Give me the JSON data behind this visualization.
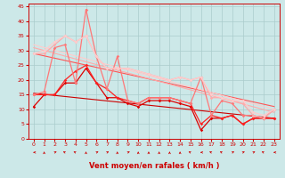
{
  "xlabel": "Vent moyen/en rafales ( km/h )",
  "xlim": [
    -0.5,
    23.5
  ],
  "ylim": [
    0,
    46
  ],
  "yticks": [
    0,
    5,
    10,
    15,
    20,
    25,
    30,
    35,
    40,
    45
  ],
  "xticks": [
    0,
    1,
    2,
    3,
    4,
    5,
    6,
    7,
    8,
    9,
    10,
    11,
    12,
    13,
    14,
    15,
    16,
    17,
    18,
    19,
    20,
    21,
    22,
    23
  ],
  "bg_color": "#cce8e8",
  "grid_color": "#aacccc",
  "series": [
    {
      "color": "#dd0000",
      "x": [
        0,
        1,
        2,
        3,
        4,
        5,
        6,
        7,
        8,
        9,
        10,
        11,
        12,
        13,
        14,
        15,
        16,
        17,
        18,
        19,
        20,
        21,
        22,
        23
      ],
      "y": [
        11,
        15,
        15,
        19,
        19,
        24,
        19,
        14,
        14,
        12,
        11,
        13,
        13,
        13,
        12,
        11,
        3,
        7,
        7,
        8,
        5,
        7,
        7,
        7
      ]
    },
    {
      "color": "#ff2222",
      "x": [
        0,
        1,
        2,
        3,
        4,
        5,
        6,
        7,
        8,
        9,
        10,
        11,
        12,
        13,
        14,
        15,
        16,
        17,
        18,
        19,
        20,
        21,
        22,
        23
      ],
      "y": [
        15,
        15,
        15,
        20,
        23,
        25,
        19,
        17,
        14,
        13,
        12,
        14,
        14,
        14,
        13,
        12,
        5,
        8,
        7,
        8,
        5,
        7,
        7,
        7
      ]
    },
    {
      "color": "#ff7777",
      "x": [
        0,
        1,
        2,
        3,
        4,
        5,
        6,
        7,
        8,
        9,
        10,
        11,
        12,
        13,
        14,
        15,
        16,
        17,
        18,
        19,
        20,
        21,
        22,
        23
      ],
      "y": [
        15,
        16,
        31,
        32,
        19,
        44,
        28,
        17,
        28,
        13,
        12,
        14,
        14,
        14,
        13,
        12,
        21,
        8,
        13,
        12,
        8,
        8,
        7,
        10
      ]
    },
    {
      "color": "#ffaaaa",
      "x": [
        0,
        1,
        2,
        3,
        4,
        5,
        6,
        7,
        8,
        9,
        10,
        11,
        12,
        13,
        14,
        15,
        16,
        17,
        18,
        19,
        20,
        21,
        22,
        23
      ],
      "y": [
        29,
        29,
        32,
        35,
        33,
        35,
        28,
        24,
        24,
        24,
        23,
        22,
        21,
        20,
        21,
        20,
        21,
        14,
        14,
        13,
        12,
        8,
        7,
        10
      ]
    },
    {
      "color": "#ffcccc",
      "x": [
        0,
        1,
        2,
        3,
        4,
        5,
        6,
        7,
        8,
        9,
        10,
        11,
        12,
        13,
        14,
        15,
        16,
        17,
        18,
        19,
        20,
        21,
        22,
        23
      ],
      "y": [
        29,
        30,
        33,
        35,
        33,
        35,
        28,
        24,
        24,
        24,
        23,
        22,
        21,
        20,
        21,
        20,
        21,
        15,
        14,
        13,
        13,
        9,
        8,
        10
      ]
    }
  ],
  "trend_lines": [
    {
      "color": "#cc0000",
      "x0": 0,
      "y0": 15.5,
      "x1": 23,
      "y1": 7
    },
    {
      "color": "#ff5555",
      "x0": 0,
      "y0": 29,
      "x1": 23,
      "y1": 11
    },
    {
      "color": "#ffaaaa",
      "x0": 0,
      "y0": 31,
      "x1": 23,
      "y1": 9
    },
    {
      "color": "#ffcccc",
      "x0": 0,
      "y0": 32,
      "x1": 23,
      "y1": 10
    }
  ],
  "arrow_directions": [
    270,
    0,
    45,
    315,
    315,
    0,
    45,
    45,
    0,
    45,
    0,
    0,
    0,
    0,
    0,
    315,
    270,
    315,
    315,
    45,
    45,
    45,
    315,
    270
  ]
}
